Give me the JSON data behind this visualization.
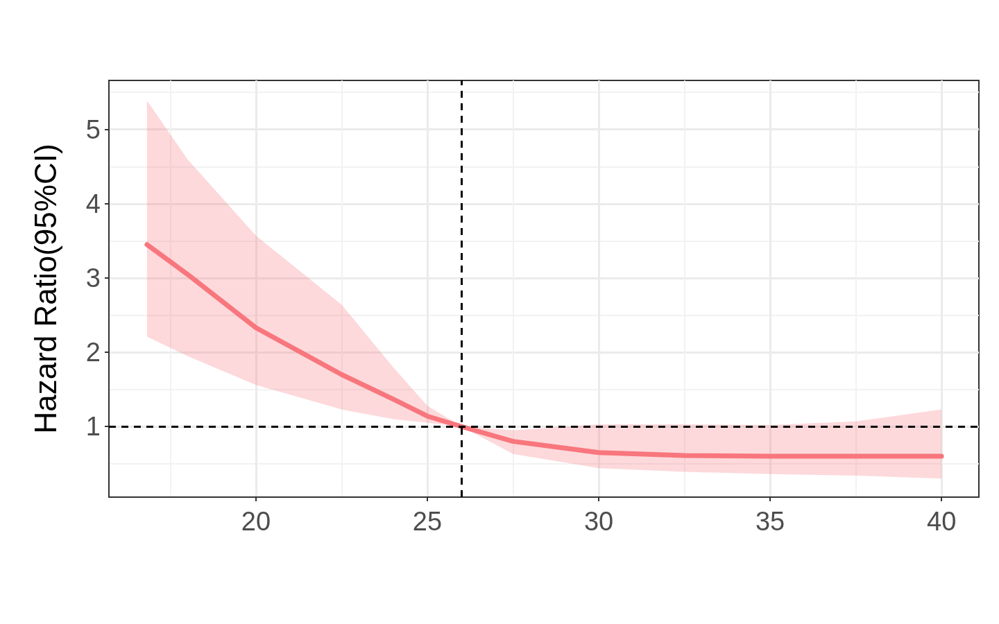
{
  "chart_data": {
    "type": "line",
    "ylabel": "Hazard Ratio(95%CI)",
    "x": [
      16.82,
      18,
      20,
      22.5,
      24,
      25,
      26,
      27.5,
      30,
      32.5,
      35,
      37.5,
      40
    ],
    "series": [
      {
        "color": "#f8767d",
        "values": [
          3.45,
          3.05,
          2.33,
          1.7,
          1.37,
          1.14,
          1.0,
          0.8,
          0.65,
          0.61,
          0.6,
          0.6,
          0.6
        ],
        "lower": [
          2.21,
          1.95,
          1.56,
          1.23,
          1.1,
          1.05,
          1.0,
          0.63,
          0.44,
          0.39,
          0.36,
          0.34,
          0.3
        ],
        "upper": [
          5.39,
          4.6,
          3.57,
          2.64,
          1.8,
          1.28,
          1.0,
          0.95,
          1.03,
          1.03,
          1.02,
          1.07,
          1.23
        ]
      }
    ],
    "xlim": [
      15.71,
      41.09
    ],
    "xticks": [
      20,
      25,
      30,
      35,
      40
    ],
    "ylim": [
      0.05,
      5.66
    ],
    "yticks": [
      1,
      2,
      3,
      4,
      5
    ],
    "grid": true,
    "marker": "none",
    "line_style": "solid",
    "ref_lines": [
      {
        "axis": "x",
        "value": 26,
        "color": "#000000",
        "line_style": "dashed"
      },
      {
        "axis": "y",
        "value": 1,
        "color": "#000000",
        "line_style": "dashed"
      }
    ]
  }
}
